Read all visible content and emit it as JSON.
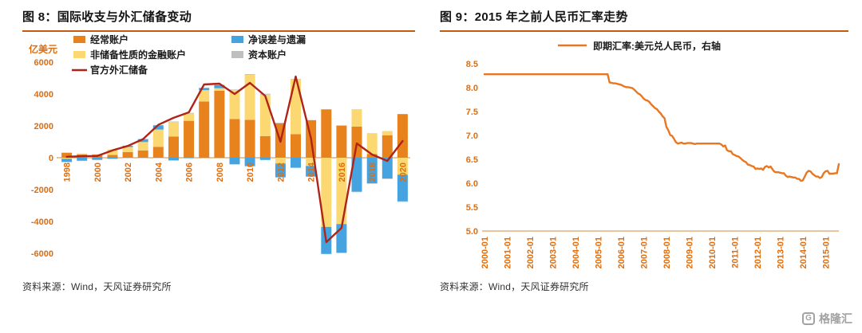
{
  "panels": {
    "left": {
      "title": "图 8：国际收支与外汇储备变动",
      "source": "资料来源：Wind，天风证券研究所"
    },
    "right": {
      "title": "图 9：2015 年之前人民币汇率走势",
      "source": "资料来源：Wind，天风证券研究所"
    }
  },
  "logo": {
    "text": "格隆汇",
    "icon_letter": "G"
  },
  "colors": {
    "accent_rule": "#C45911",
    "axis_text": "#E36C09",
    "current_account": "#E8821D",
    "financial_account": "#FBD872",
    "errors_omissions": "#45A4E0",
    "capital_account": "#BFBFBF",
    "reserves_line": "#B02418",
    "fx_line": "#E87722"
  },
  "chart_data": [
    {
      "type": "bar",
      "subtype": "stacked-bars-with-line",
      "title": "图 8：国际收支与外汇储备变动",
      "unit_label": "亿美元",
      "ylabel": "亿美元",
      "ylim": [
        -6000,
        6000
      ],
      "yticks": [
        6000,
        4000,
        2000,
        0,
        -2000,
        -4000,
        -6000
      ],
      "grid": false,
      "legend_position": "top",
      "xtick_step": 2,
      "categories": [
        "1998",
        "1999",
        "2000",
        "2001",
        "2002",
        "2003",
        "2004",
        "2005",
        "2006",
        "2007",
        "2008",
        "2009",
        "2010",
        "2011",
        "2012",
        "2013",
        "2014",
        "2015",
        "2016",
        "2017",
        "2018",
        "2019",
        "2020"
      ],
      "legend_order": [
        "经常账户",
        "净误差与遗漏",
        "非储备性质的金融账户",
        "资本账户",
        "官方外汇储备"
      ],
      "series": [
        {
          "name": "经常账户",
          "type": "bar",
          "color": "#E8821D",
          "values": [
            315,
            211,
            205,
            174,
            354,
            459,
            687,
            1324,
            2318,
            3532,
            4206,
            2433,
            2378,
            1361,
            2154,
            1482,
            2360,
            3042,
            2022,
            1951,
            241,
            1413,
            2740
          ]
        },
        {
          "name": "非储备性质的金融账户",
          "type": "bar",
          "color": "#FBD872",
          "values": [
            -63,
            52,
            20,
            348,
            322,
            527,
            1082,
            910,
            453,
            704,
            163,
            1808,
            2822,
            2600,
            -360,
            3430,
            -514,
            -4340,
            -4161,
            1095,
            1306,
            263,
            -1058
          ]
        },
        {
          "name": "净误差与遗漏",
          "type": "bar",
          "color": "#45A4E0",
          "values": [
            -189,
            -177,
            -118,
            -49,
            78,
            184,
            270,
            -168,
            -13,
            132,
            188,
            -414,
            -529,
            -138,
            -871,
            -629,
            -669,
            -1700,
            -1800,
            -2130,
            -1602,
            -1304,
            -1681
          ]
        },
        {
          "name": "资本账户",
          "type": "bar",
          "color": "#BFBFBF",
          "values": [
            -5,
            -3,
            -4,
            -5,
            -3,
            -5,
            -7,
            41,
            40,
            31,
            30,
            40,
            46,
            54,
            43,
            31,
            0,
            3,
            -3,
            -1,
            -6,
            -3,
            -1
          ]
        },
        {
          "name": "官方外汇储备",
          "type": "line",
          "color": "#B02418",
          "values": [
            60,
            97,
            109,
            466,
            742,
            1168,
            2067,
            2505,
            2850,
            4600,
            4650,
            4000,
            4700,
            3880,
            1000,
            5100,
            1200,
            -5300,
            -4400,
            900,
            200,
            -200,
            1050
          ]
        }
      ]
    },
    {
      "type": "line",
      "title": "图 9：2015 年之前人民币汇率走势",
      "legend": "即期汇率:美元兑人民币，右轴",
      "color": "#E87722",
      "ylim": [
        5.0,
        8.5
      ],
      "yticks": [
        8.5,
        8.0,
        7.5,
        7.0,
        6.5,
        6.0,
        5.5,
        5.0
      ],
      "ytick_decimals": 1,
      "grid": false,
      "legend_position": "top",
      "x_start": "2000-01",
      "xtick_interval": 12,
      "xtick_labels": [
        "2000-01",
        "2001-01",
        "2002-01",
        "2003-01",
        "2004-01",
        "2005-01",
        "2006-01",
        "2007-01",
        "2008-01",
        "2009-01",
        "2010-01",
        "2011-01",
        "2012-01",
        "2013-01",
        "2014-01",
        "2015-01"
      ],
      "values": [
        8.28,
        8.28,
        8.28,
        8.28,
        8.28,
        8.28,
        8.28,
        8.28,
        8.28,
        8.28,
        8.28,
        8.28,
        8.28,
        8.28,
        8.28,
        8.28,
        8.28,
        8.28,
        8.28,
        8.28,
        8.28,
        8.28,
        8.28,
        8.28,
        8.28,
        8.28,
        8.28,
        8.28,
        8.28,
        8.28,
        8.28,
        8.28,
        8.28,
        8.28,
        8.28,
        8.28,
        8.28,
        8.28,
        8.28,
        8.28,
        8.28,
        8.28,
        8.28,
        8.28,
        8.28,
        8.28,
        8.28,
        8.28,
        8.28,
        8.28,
        8.28,
        8.28,
        8.28,
        8.28,
        8.28,
        8.28,
        8.28,
        8.28,
        8.28,
        8.28,
        8.28,
        8.28,
        8.28,
        8.28,
        8.28,
        8.28,
        8.11,
        8.1,
        8.09,
        8.09,
        8.08,
        8.07,
        8.06,
        8.04,
        8.02,
        8.01,
        8.01,
        8.0,
        7.99,
        7.96,
        7.92,
        7.88,
        7.86,
        7.82,
        7.77,
        7.74,
        7.73,
        7.7,
        7.65,
        7.61,
        7.57,
        7.55,
        7.5,
        7.46,
        7.4,
        7.36,
        7.18,
        7.11,
        7.01,
        6.99,
        6.93,
        6.86,
        6.83,
        6.84,
        6.85,
        6.83,
        6.83,
        6.84,
        6.84,
        6.84,
        6.83,
        6.82,
        6.83,
        6.83,
        6.83,
        6.83,
        6.83,
        6.83,
        6.83,
        6.83,
        6.83,
        6.83,
        6.83,
        6.83,
        6.83,
        6.81,
        6.77,
        6.79,
        6.69,
        6.67,
        6.67,
        6.61,
        6.59,
        6.57,
        6.56,
        6.53,
        6.49,
        6.46,
        6.44,
        6.39,
        6.38,
        6.36,
        6.35,
        6.3,
        6.31,
        6.3,
        6.31,
        6.28,
        6.34,
        6.36,
        6.33,
        6.35,
        6.29,
        6.24,
        6.23,
        6.23,
        6.22,
        6.21,
        6.21,
        6.16,
        6.13,
        6.14,
        6.13,
        6.12,
        6.12,
        6.09,
        6.09,
        6.05,
        6.06,
        6.14,
        6.22,
        6.26,
        6.25,
        6.2,
        6.17,
        6.14,
        6.14,
        6.11,
        6.13,
        6.21,
        6.25,
        6.26,
        6.2,
        6.2,
        6.2,
        6.21,
        6.21,
        6.4
      ]
    }
  ]
}
